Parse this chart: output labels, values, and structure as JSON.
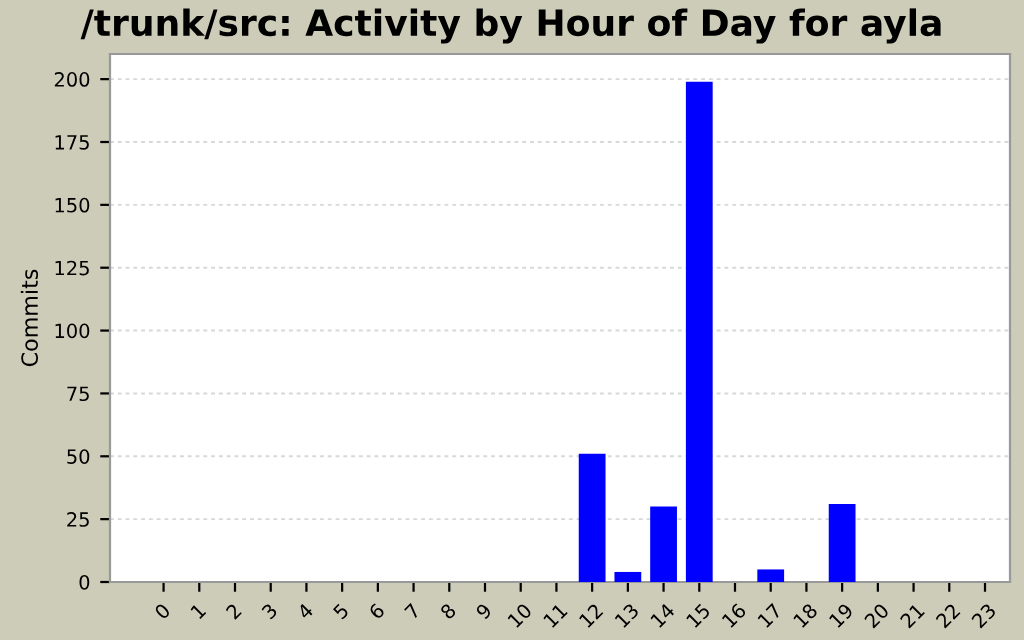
{
  "chart_data": {
    "type": "bar",
    "title": "/trunk/src: Activity by Hour of Day for ayla",
    "ylabel": "Commits",
    "categories": [
      "0",
      "1",
      "2",
      "3",
      "4",
      "5",
      "6",
      "7",
      "8",
      "9",
      "10",
      "11",
      "12",
      "13",
      "14",
      "15",
      "16",
      "17",
      "18",
      "19",
      "20",
      "21",
      "22",
      "23"
    ],
    "values": [
      0,
      0,
      0,
      0,
      0,
      0,
      0,
      0,
      0,
      0,
      0,
      0,
      51,
      4,
      30,
      199,
      0,
      5,
      0,
      31,
      0,
      0,
      0,
      0
    ],
    "color": "#0000ff",
    "ylim": [
      0,
      210
    ],
    "yticks": [
      0,
      25,
      50,
      75,
      100,
      125,
      150,
      175,
      200
    ],
    "grid": "y"
  }
}
